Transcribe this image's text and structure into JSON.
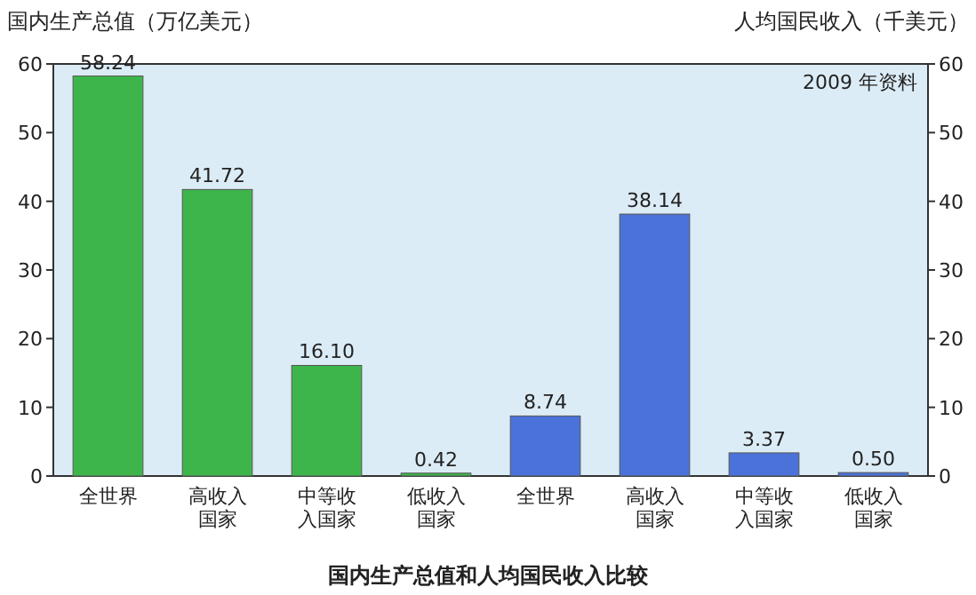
{
  "chart_data": {
    "type": "bar",
    "title": "国内生产总值和人均国民收入比较",
    "ylabel": "国内生产总值（万亿美元）",
    "y2label": "人均国民收入（千美元）",
    "annotations": [
      "2009 年资料"
    ],
    "categories": [
      "全世界",
      "高收入国家",
      "中等收入国家",
      "低收入国家",
      "全世界",
      "高收入国家",
      "中等收入国家",
      "低收入国家"
    ],
    "series": [
      {
        "color": "#3db54a",
        "values": [
          58.24,
          41.72,
          16.1,
          0.42,
          null,
          null,
          null,
          null
        ],
        "value_labels": [
          "58.24",
          "41.72",
          "16.10",
          "0.42",
          null,
          null,
          null,
          null
        ]
      },
      {
        "color": "#4a72d8",
        "values": [
          null,
          null,
          null,
          null,
          8.74,
          38.14,
          3.37,
          0.5
        ],
        "value_labels": [
          null,
          null,
          null,
          null,
          "8.74",
          "38.14",
          "3.37",
          "0.50"
        ]
      }
    ],
    "ylim": [
      0,
      60
    ],
    "yticks": [
      0,
      10,
      20,
      30,
      40,
      50,
      60
    ],
    "y2lim": [
      0,
      60
    ],
    "y2ticks": [
      0,
      10,
      20,
      30,
      40,
      50,
      60
    ],
    "grid": false
  }
}
